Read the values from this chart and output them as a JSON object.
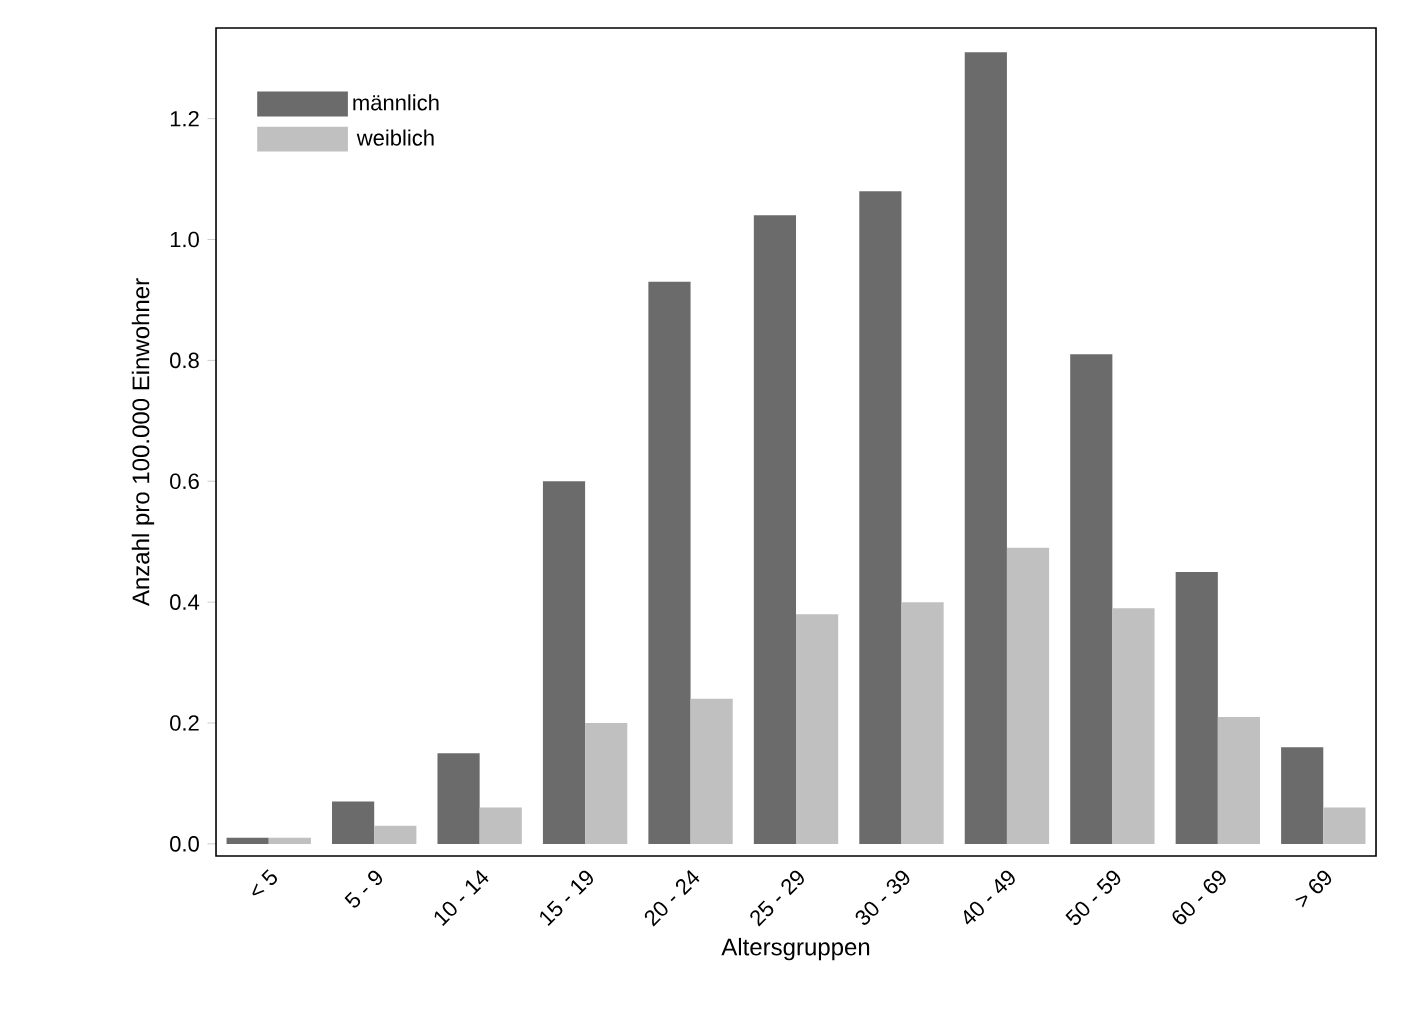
{
  "chart_data": {
    "type": "bar",
    "xlabel": "Altersgruppen",
    "ylabel": "Anzahl pro 100.000 Einwohner",
    "categories": [
      "< 5",
      "5 - 9",
      "10 - 14",
      "15 - 19",
      "20 - 24",
      "25 - 29",
      "30 - 39",
      "40 - 49",
      "50 - 59",
      "60 - 69",
      "> 69"
    ],
    "series": [
      {
        "name": "männlich",
        "color": "#6b6b6b",
        "values": [
          0.01,
          0.07,
          0.15,
          0.6,
          0.93,
          1.04,
          1.08,
          1.31,
          0.81,
          0.45,
          0.16
        ]
      },
      {
        "name": "weiblich",
        "color": "#c0c0c0",
        "values": [
          0.01,
          0.03,
          0.06,
          0.2,
          0.24,
          0.38,
          0.4,
          0.49,
          0.39,
          0.21,
          0.06
        ]
      }
    ],
    "ylim": [
      -0.02,
      1.35
    ],
    "yticks": [
      {
        "value": 0,
        "label": "0.0"
      },
      {
        "value": 0.2,
        "label": "0.2"
      },
      {
        "value": 0.4,
        "label": "0.4"
      },
      {
        "value": 0.6,
        "label": "0.6"
      },
      {
        "value": 0.8,
        "label": "0.8"
      },
      {
        "value": 1.0,
        "label": "1.0"
      },
      {
        "value": 1.2,
        "label": "1.2"
      }
    ],
    "grid": false,
    "legend": "top left"
  }
}
